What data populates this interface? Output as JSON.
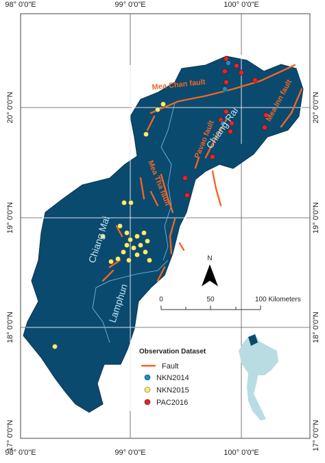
{
  "graticule": {
    "longitudes": [
      "98° 0'0\"E",
      "99° 0'0\"E",
      "100° 0'0\"E"
    ],
    "latitudes": [
      "20° 0'0\"N",
      "19° 0'0\"N",
      "18° 0'0\"N",
      "17° 0'0\"N"
    ]
  },
  "faults": [
    "Mea Chan fault",
    "Mea Inn fault",
    "Pavao fault",
    "Mea Tha fault"
  ],
  "provinces": [
    "Chiang Rai",
    "Chiang Mai",
    "Lamphun"
  ],
  "north_arrow": "N",
  "scale_bar": [
    "0",
    "50",
    "100 Kilometers"
  ],
  "legend": {
    "title": "Observation Dataset",
    "items": [
      "Fault",
      "NKN2014",
      "NKN2015",
      "PAC2016"
    ]
  }
}
